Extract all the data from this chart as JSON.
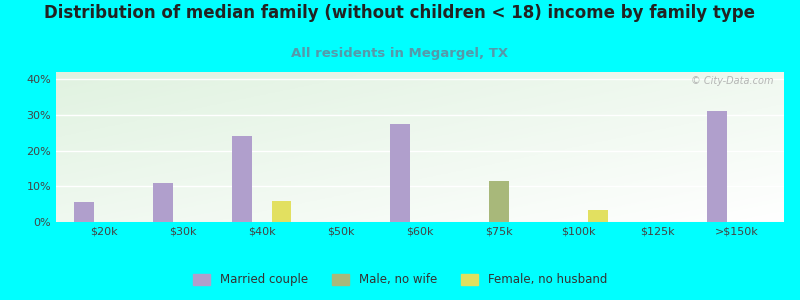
{
  "title": "Distribution of median family (without children < 18) income by family type",
  "subtitle": "All residents in Megargel, TX",
  "watermark": "© City-Data.com",
  "categories": [
    "$20k",
    "$30k",
    "$40k",
    "$50k",
    "$60k",
    "$75k",
    "$100k",
    "$125k",
    ">$150k"
  ],
  "married_couple": [
    5.5,
    11,
    24,
    0,
    27.5,
    0,
    0,
    0,
    31
  ],
  "male_no_wife": [
    0,
    0,
    0,
    0,
    0,
    11.5,
    0,
    0,
    0
  ],
  "female_no_husband": [
    0,
    0,
    6,
    0,
    0,
    0,
    3.5,
    0,
    0
  ],
  "married_couple_color": "#b09fcc",
  "male_no_wife_color": "#a8b87a",
  "female_no_husband_color": "#e2e060",
  "background_outer": "#00ffff",
  "ylim": [
    0,
    42
  ],
  "yticks": [
    0,
    10,
    20,
    30,
    40
  ],
  "ytick_labels": [
    "0%",
    "10%",
    "20%",
    "30%",
    "40%"
  ],
  "title_fontsize": 12,
  "subtitle_fontsize": 9.5,
  "bar_width": 0.25,
  "legend_labels": [
    "Married couple",
    "Male, no wife",
    "Female, no husband"
  ]
}
